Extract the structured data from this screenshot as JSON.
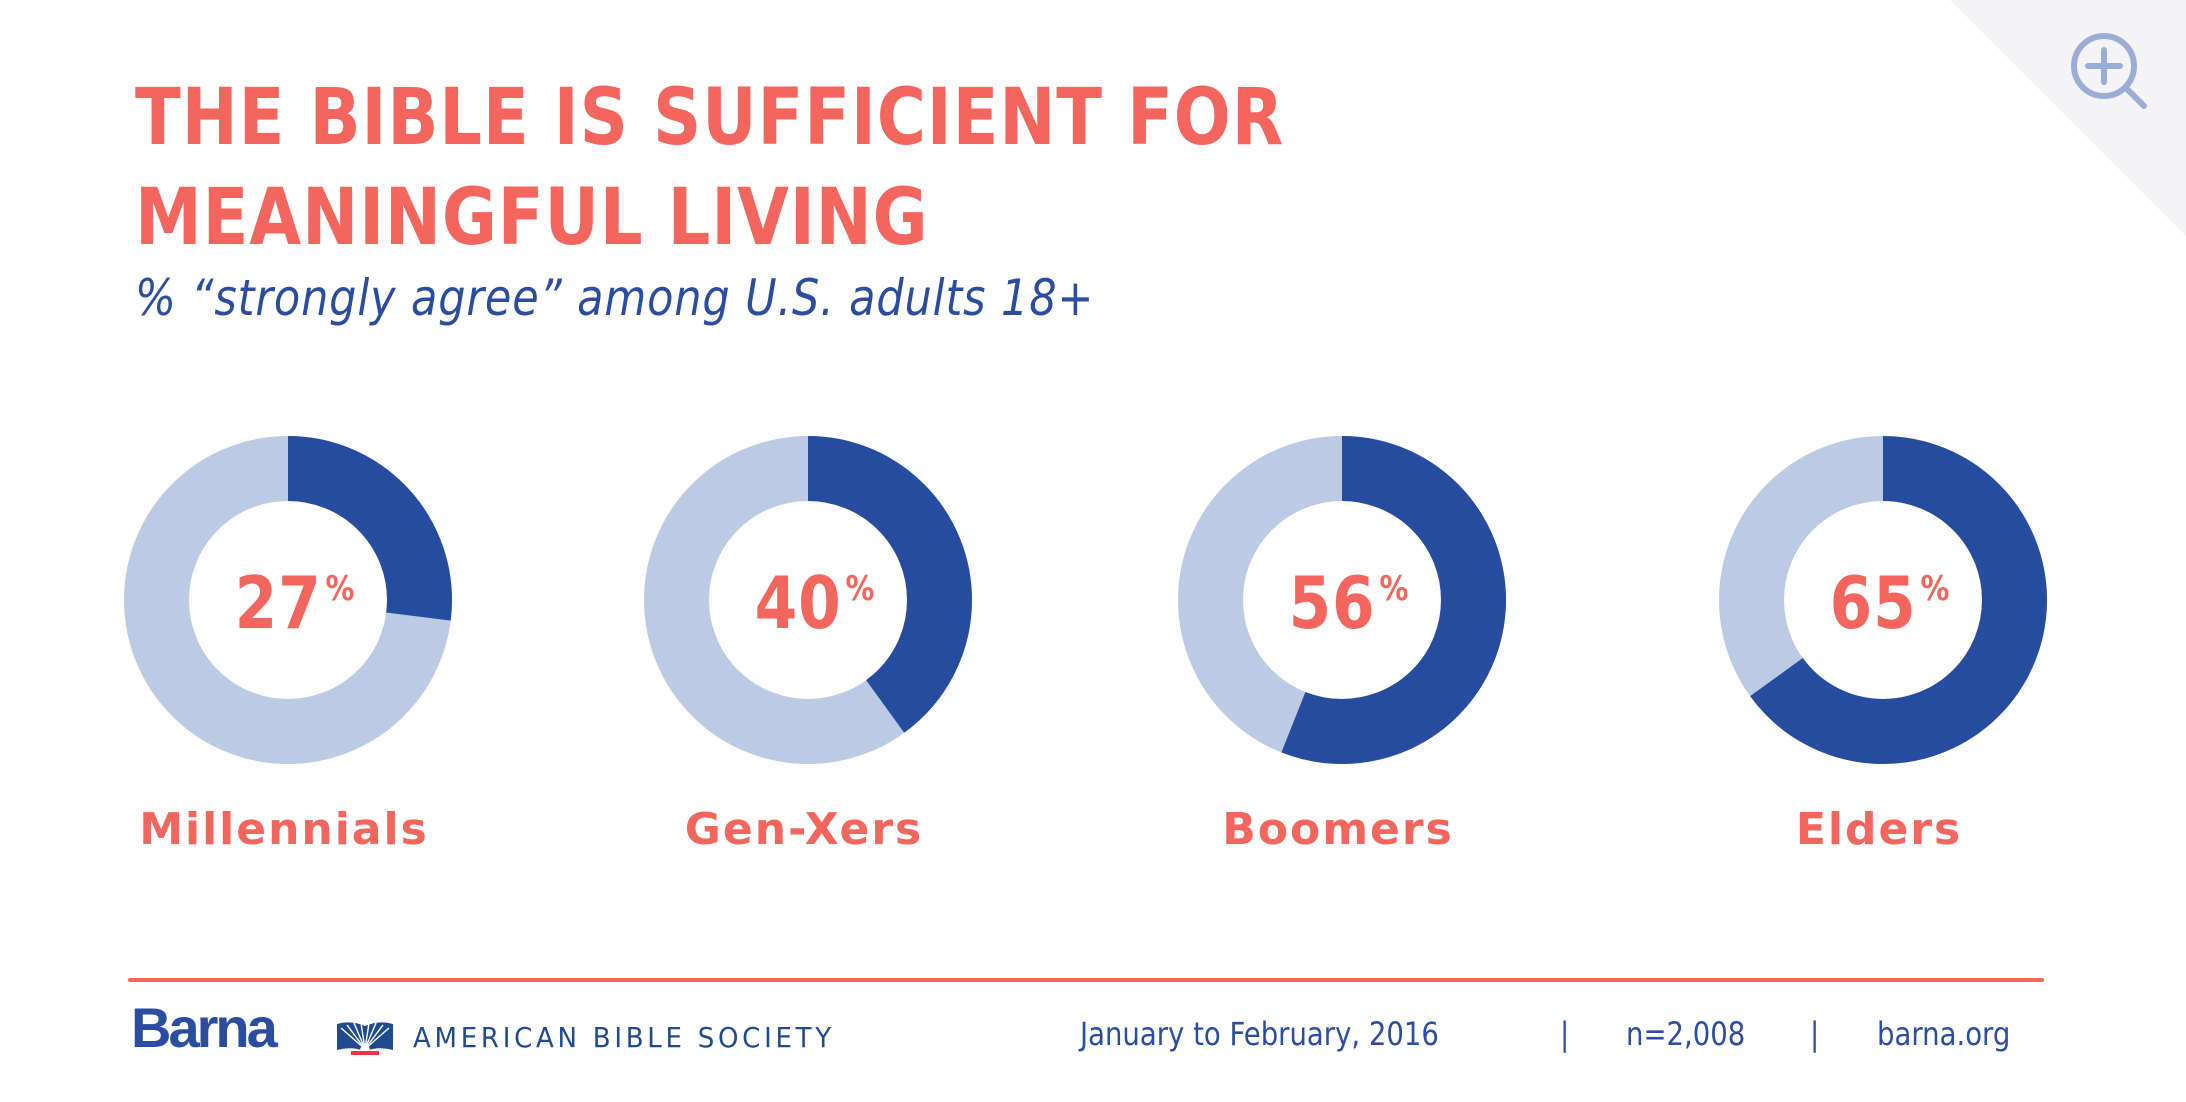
{
  "header": {
    "title_lines": [
      "THE BIBLE IS SUFFICIENT FOR",
      "MEANINGFUL LIVING"
    ],
    "subtitle": "% “strongly agree” among U.S. adults 18+"
  },
  "zoom_control": {
    "icon": "zoom-in-icon"
  },
  "colors": {
    "accent": "#F2665E",
    "primary_blue": "#2A4DA0",
    "filled_segment": "#264CA0",
    "remainder_segment": "#BCCAE3",
    "corner_bg": "#F4F4F6",
    "zoom_icon": "#9AADD6"
  },
  "chart_data": {
    "type": "pie",
    "variant": "donut",
    "title": "THE BIBLE IS SUFFICIENT FOR MEANINGFUL LIVING",
    "subtitle": "% “strongly agree” among U.S. adults 18+",
    "unit": "%",
    "categories": [
      "Millennials",
      "Gen-Xers",
      "Boomers",
      "Elders"
    ],
    "values": [
      27,
      40,
      56,
      65
    ],
    "value_labels": [
      "27",
      "40",
      "56",
      "65"
    ],
    "percent_symbol": "%",
    "max": 100
  },
  "footer": {
    "brand": "Barna",
    "partner": "AMERICAN BIBLE SOCIETY",
    "partner_icon": "open-bible-sunburst-icon",
    "date_range": "January to February, 2016",
    "separator": "|",
    "sample_size": "n=2,008",
    "website": "barna.org"
  }
}
